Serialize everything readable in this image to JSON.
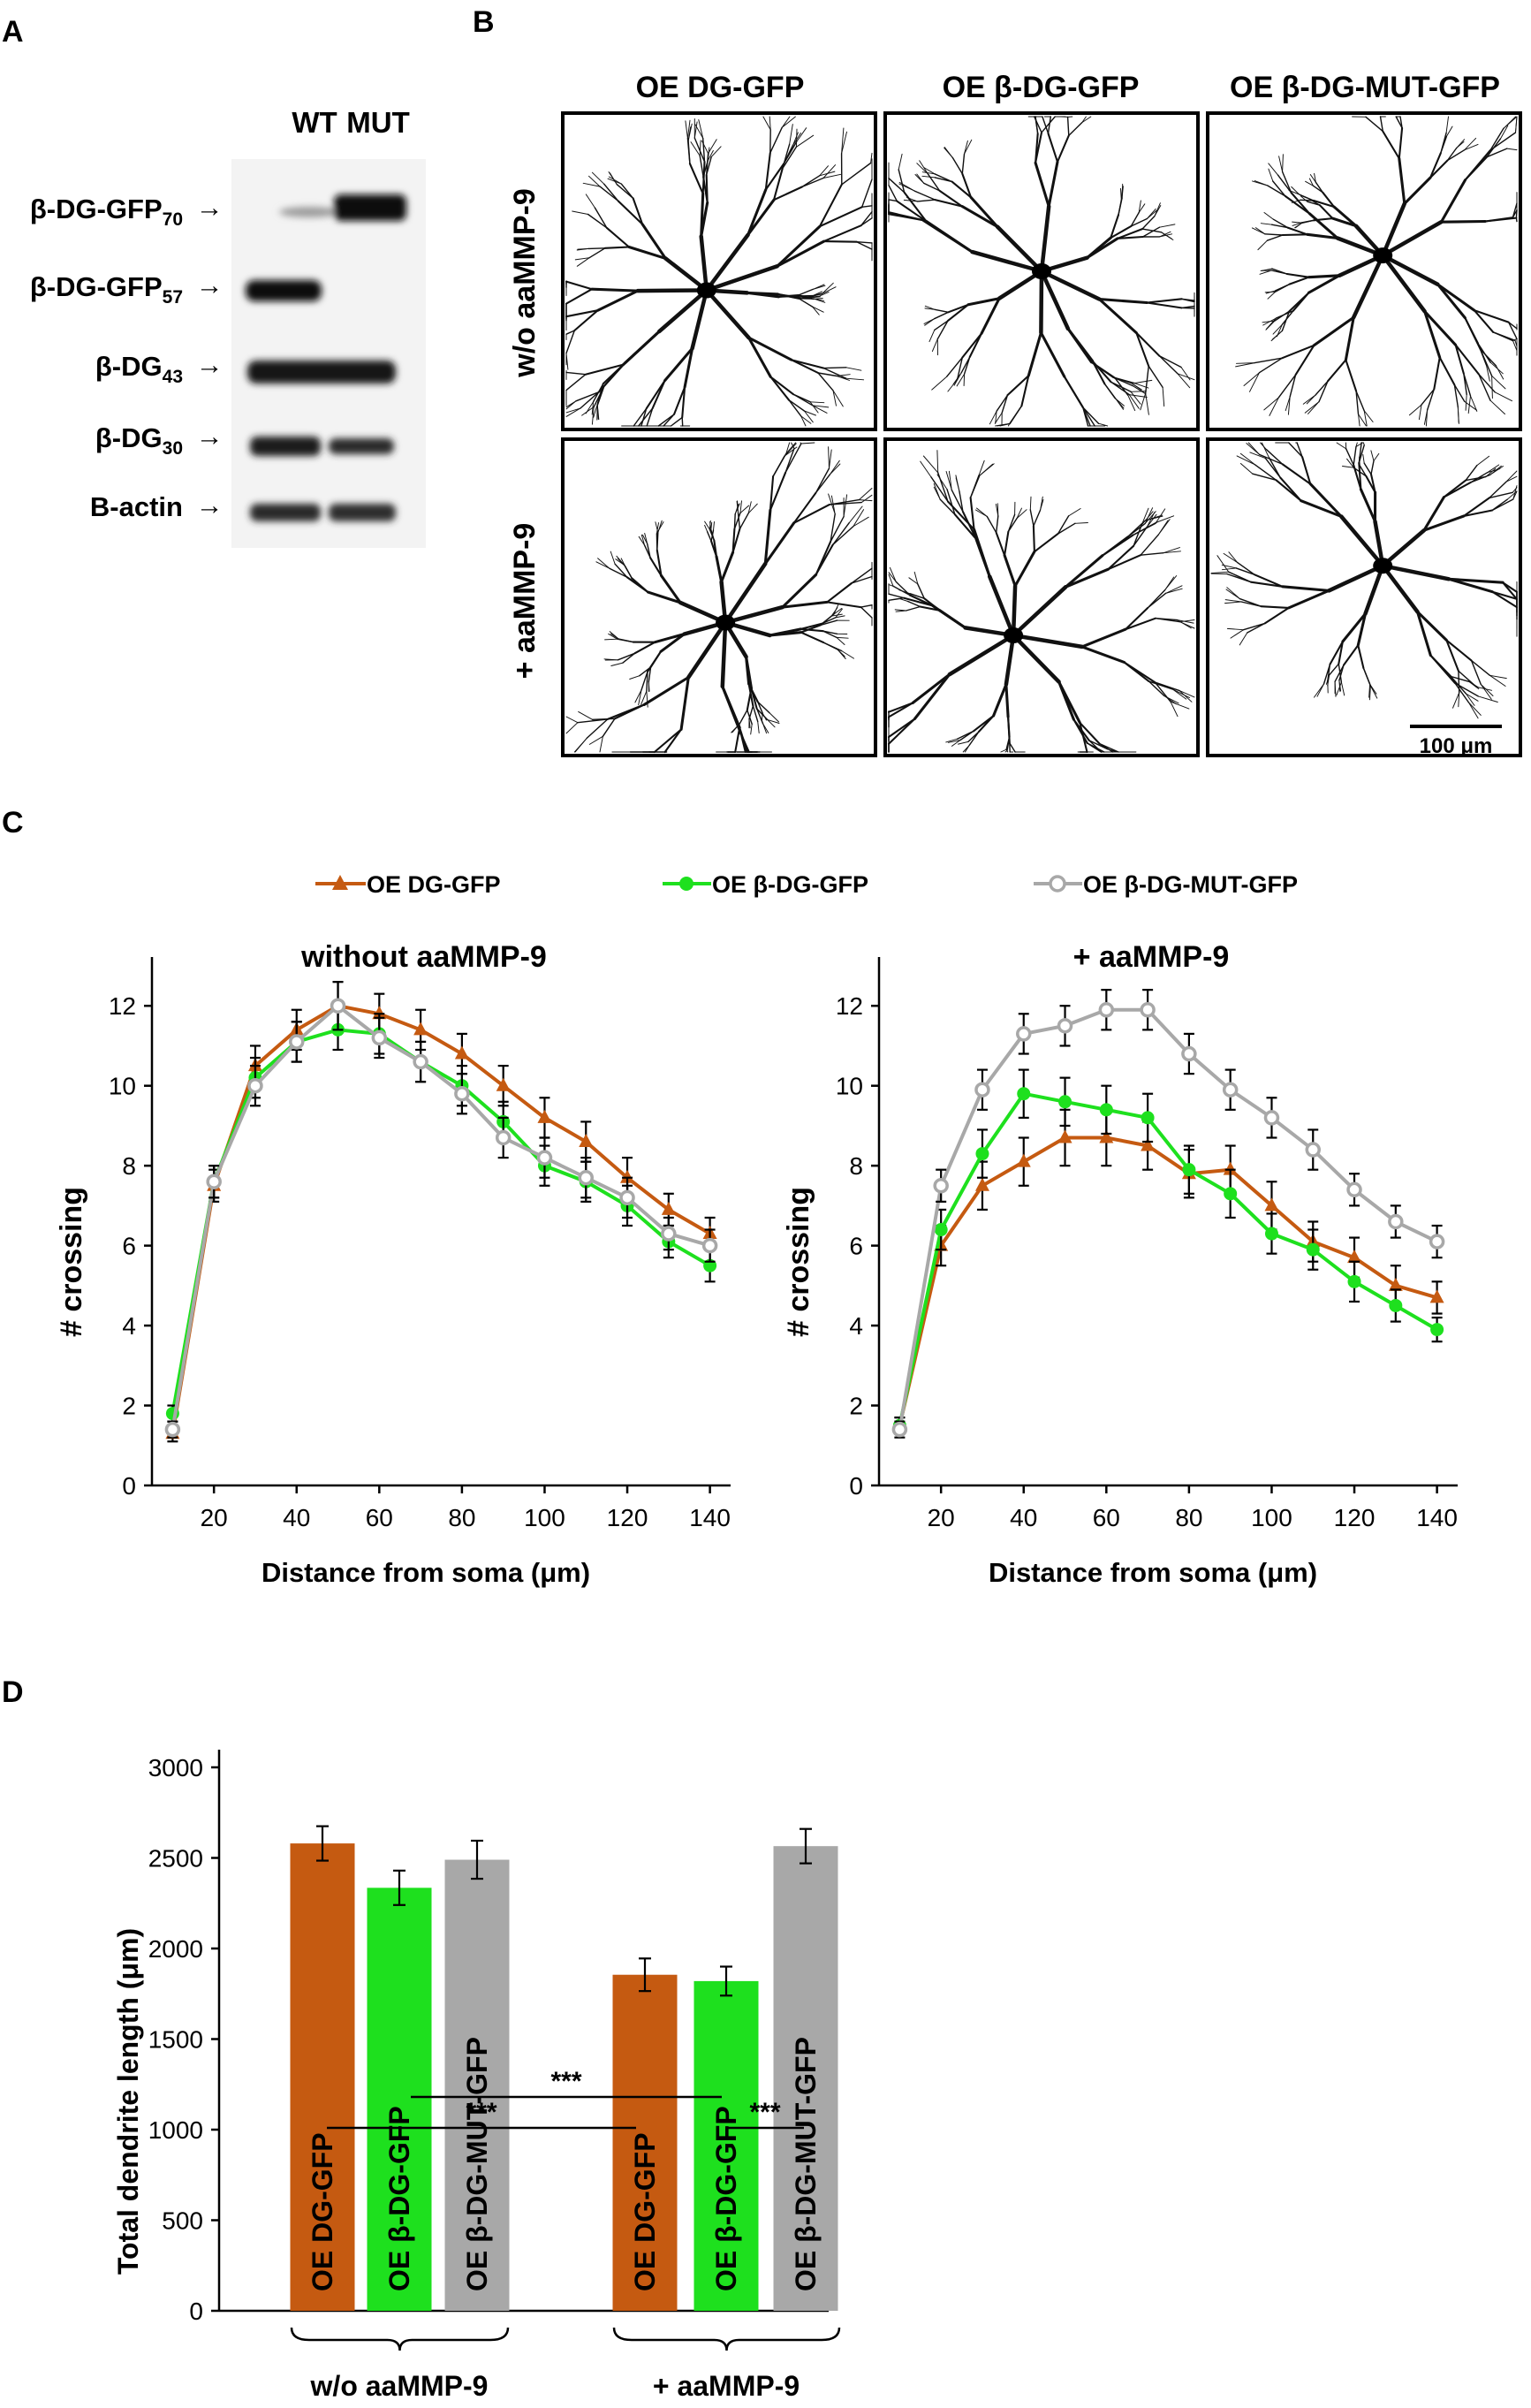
{
  "panel_labels": {
    "a": "A",
    "b": "B",
    "c": "C",
    "d": "D"
  },
  "panel_a": {
    "lane_labels": [
      "WT",
      "MUT"
    ],
    "rows": [
      {
        "base": "β-DG-GFP",
        "sub": "70",
        "arrow": "→"
      },
      {
        "base": "β-DG-GFP",
        "sub": "57",
        "arrow": "→"
      },
      {
        "base": "β-DG",
        "sub": "43",
        "arrow": "→"
      },
      {
        "base": "β-DG",
        "sub": "30",
        "arrow": "→"
      },
      {
        "base": "B-actin",
        "sub": "",
        "arrow": "→"
      }
    ]
  },
  "panel_b": {
    "column_titles": [
      "OE DG-GFP",
      "OE β-DG-GFP",
      "OE β-DG-MUT-GFP"
    ],
    "row_titles": [
      "w/o aaMMP-9",
      "+ aaMMP-9"
    ],
    "scale_bar": "100 μm"
  },
  "colors": {
    "dg": "#c55a11",
    "bdg": "#1ee01e",
    "mut": "#a8a8a8",
    "axis": "#000000"
  },
  "chart_data": [
    {
      "type": "line",
      "title": "without aaMMP-9",
      "xlabel": "Distance from soma (μm)",
      "ylabel": "# crossing",
      "xlim": [
        5,
        145
      ],
      "ylim": [
        0,
        13
      ],
      "xticks": [
        20,
        40,
        60,
        80,
        100,
        120,
        140
      ],
      "yticks": [
        0,
        2,
        4,
        6,
        8,
        10,
        12
      ],
      "x": [
        10,
        20,
        30,
        40,
        50,
        60,
        70,
        80,
        90,
        100,
        110,
        120,
        130,
        140
      ],
      "series": [
        {
          "name": "OE DG-GFP",
          "values": [
            1.3,
            7.5,
            10.5,
            11.4,
            12.0,
            11.8,
            11.4,
            10.8,
            10.0,
            9.2,
            8.6,
            7.7,
            6.9,
            6.3
          ],
          "errors": [
            0.2,
            0.4,
            0.5,
            0.5,
            0.6,
            0.5,
            0.5,
            0.5,
            0.5,
            0.5,
            0.5,
            0.5,
            0.4,
            0.4
          ]
        },
        {
          "name": "OE β-DG-GFP",
          "values": [
            1.8,
            7.6,
            10.2,
            11.1,
            11.4,
            11.3,
            10.6,
            10.0,
            9.1,
            8.0,
            7.6,
            7.0,
            6.1,
            5.5
          ],
          "errors": [
            0.2,
            0.4,
            0.5,
            0.5,
            0.5,
            0.5,
            0.5,
            0.5,
            0.5,
            0.5,
            0.5,
            0.5,
            0.4,
            0.4
          ]
        },
        {
          "name": "OE β-DG-MUT-GFP",
          "values": [
            1.4,
            7.6,
            10.0,
            11.1,
            12.0,
            11.2,
            10.6,
            9.8,
            8.7,
            8.2,
            7.7,
            7.2,
            6.3,
            6.0
          ],
          "errors": [
            0.2,
            0.4,
            0.5,
            0.5,
            0.6,
            0.5,
            0.5,
            0.5,
            0.5,
            0.5,
            0.5,
            0.5,
            0.4,
            0.4
          ]
        }
      ]
    },
    {
      "type": "line",
      "title": "+ aaMMP-9",
      "xlabel": "Distance from soma (μm)",
      "ylabel": "# crossing",
      "xlim": [
        5,
        145
      ],
      "ylim": [
        0,
        13
      ],
      "xticks": [
        20,
        40,
        60,
        80,
        100,
        120,
        140
      ],
      "yticks": [
        0,
        2,
        4,
        6,
        8,
        10,
        12
      ],
      "x": [
        10,
        20,
        30,
        40,
        50,
        60,
        70,
        80,
        90,
        100,
        110,
        120,
        130,
        140
      ],
      "series": [
        {
          "name": "OE DG-GFP",
          "values": [
            1.5,
            6.0,
            7.5,
            8.1,
            8.7,
            8.7,
            8.5,
            7.8,
            7.9,
            7.0,
            6.1,
            5.7,
            5.0,
            4.7
          ],
          "errors": [
            0.2,
            0.5,
            0.6,
            0.6,
            0.7,
            0.7,
            0.6,
            0.6,
            0.6,
            0.6,
            0.5,
            0.5,
            0.5,
            0.4
          ]
        },
        {
          "name": "OE β-DG-GFP",
          "values": [
            1.5,
            6.4,
            8.3,
            9.8,
            9.6,
            9.4,
            9.2,
            7.9,
            7.3,
            6.3,
            5.9,
            5.1,
            4.5,
            3.9
          ],
          "errors": [
            0.2,
            0.5,
            0.6,
            0.6,
            0.6,
            0.6,
            0.6,
            0.6,
            0.6,
            0.5,
            0.5,
            0.5,
            0.4,
            0.3
          ]
        },
        {
          "name": "OE β-DG-MUT-GFP",
          "values": [
            1.4,
            7.5,
            9.9,
            11.3,
            11.5,
            11.9,
            11.9,
            10.8,
            9.9,
            9.2,
            8.4,
            7.4,
            6.6,
            6.1
          ],
          "errors": [
            0.2,
            0.4,
            0.5,
            0.5,
            0.5,
            0.5,
            0.5,
            0.5,
            0.5,
            0.5,
            0.5,
            0.4,
            0.4,
            0.4
          ]
        }
      ]
    },
    {
      "type": "bar",
      "ylabel": "Total dendrite length (μm)",
      "ylim": [
        0,
        3000
      ],
      "yticks": [
        0,
        500,
        1000,
        1500,
        2000,
        2500,
        3000
      ],
      "categories": [
        "OE DG-GFP",
        "OE β-DG-GFP",
        "OE β-DG-MUT-GFP",
        "OE DG-GFP",
        "OE β-DG-GFP",
        "OE β-DG-MUT-GFP"
      ],
      "values": [
        2580,
        2335,
        2490,
        1855,
        1820,
        2565
      ],
      "errors": [
        95,
        95,
        105,
        90,
        80,
        95
      ],
      "groups": [
        "w/o aaMMP-9",
        "+ aaMMP-9"
      ],
      "significance": [
        "***",
        "***",
        "***"
      ]
    }
  ]
}
